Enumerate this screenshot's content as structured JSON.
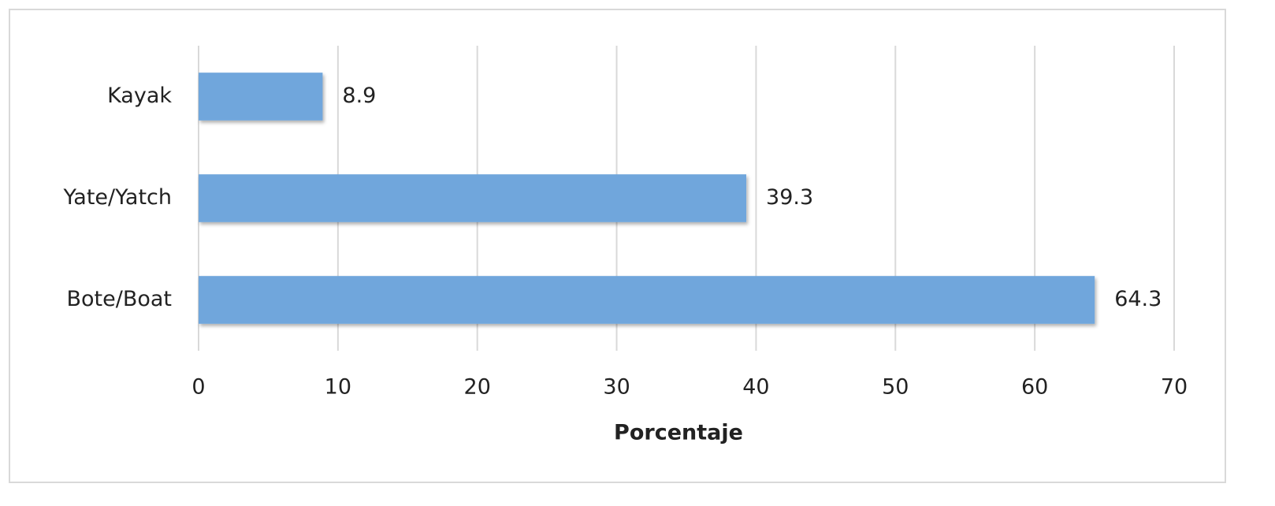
{
  "chart_data": {
    "type": "bar",
    "orientation": "horizontal",
    "x_label": "Porcentaje",
    "categories": [
      "Kayak",
      "Yate/Yatch",
      "Bote/Boat"
    ],
    "values": [
      8.9,
      39.3,
      64.3
    ],
    "color": "#70a6dc",
    "xlim": [
      0,
      70
    ],
    "xticks": [
      0,
      10,
      20,
      30,
      40,
      50,
      60,
      70
    ],
    "grid": true
  }
}
